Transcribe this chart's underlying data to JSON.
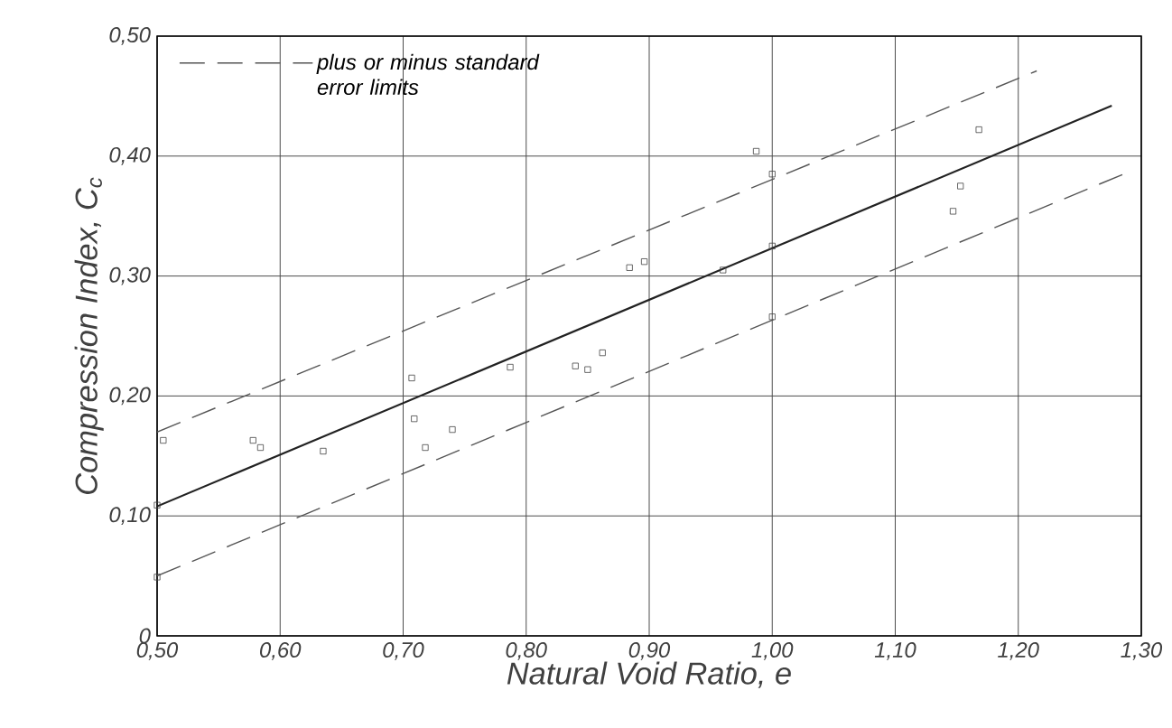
{
  "chart_data": {
    "type": "scatter",
    "xlabel": "Natural Void Ratio, e",
    "ylabel": "Compression Index, C$_{c}$",
    "xlim": [
      0.5,
      1.3
    ],
    "ylim": [
      0,
      0.5
    ],
    "xticks": [
      {
        "value": 0.5,
        "label": "0,50"
      },
      {
        "value": 0.6,
        "label": "0,60"
      },
      {
        "value": 0.7,
        "label": "0,70"
      },
      {
        "value": 0.8,
        "label": "0,80"
      },
      {
        "value": 0.9,
        "label": "0,90"
      },
      {
        "value": 1.0,
        "label": "1,00"
      },
      {
        "value": 1.1,
        "label": "1,10"
      },
      {
        "value": 1.2,
        "label": "1,20"
      },
      {
        "value": 1.3,
        "label": "1,30"
      }
    ],
    "yticks": [
      0,
      {
        "value": 0.1,
        "label": "0,10"
      },
      {
        "value": 0.2,
        "label": "0,20"
      },
      {
        "value": 0.3,
        "label": "0,30"
      },
      {
        "value": 0.4,
        "label": "0,40"
      },
      {
        "value": 0.5,
        "label": "0,50"
      }
    ],
    "grid": true,
    "legend": "top left",
    "series": [
      {
        "marker": "square",
        "color": "#444444",
        "x": [
          0.505,
          0.5,
          0.5,
          0.578,
          0.584,
          0.635,
          0.707,
          0.709,
          0.718,
          0.74,
          0.787,
          0.84,
          0.85,
          0.862,
          0.884,
          0.896,
          0.96,
          0.987,
          1.0,
          1.0,
          1.0,
          1.168,
          1.153,
          1.147
        ],
        "values": [
          0.163,
          0.109,
          0.049,
          0.163,
          0.157,
          0.154,
          0.215,
          0.181,
          0.157,
          0.172,
          0.224,
          0.225,
          0.222,
          0.236,
          0.307,
          0.312,
          0.305,
          0.404,
          0.385,
          0.325,
          0.266,
          0.422,
          0.375,
          0.354
        ]
      },
      {
        "type": "line",
        "marker": "none",
        "color": "#222222",
        "line_style": "solid",
        "x": [
          0.5,
          1.276
        ],
        "values": [
          0.108,
          0.442
        ]
      },
      {
        "type": "line",
        "marker": "none",
        "name": "plus or minus standard error limits",
        "color": "#555555",
        "line_style": "dashed",
        "x": [
          0.5,
          1.215
        ],
        "values": [
          0.17,
          0.471
        ]
      },
      {
        "type": "line",
        "marker": "none",
        "color": "#555555",
        "line_style": "dashed",
        "x": [
          0.5,
          1.288
        ],
        "values": [
          0.05,
          0.386
        ]
      }
    ]
  }
}
